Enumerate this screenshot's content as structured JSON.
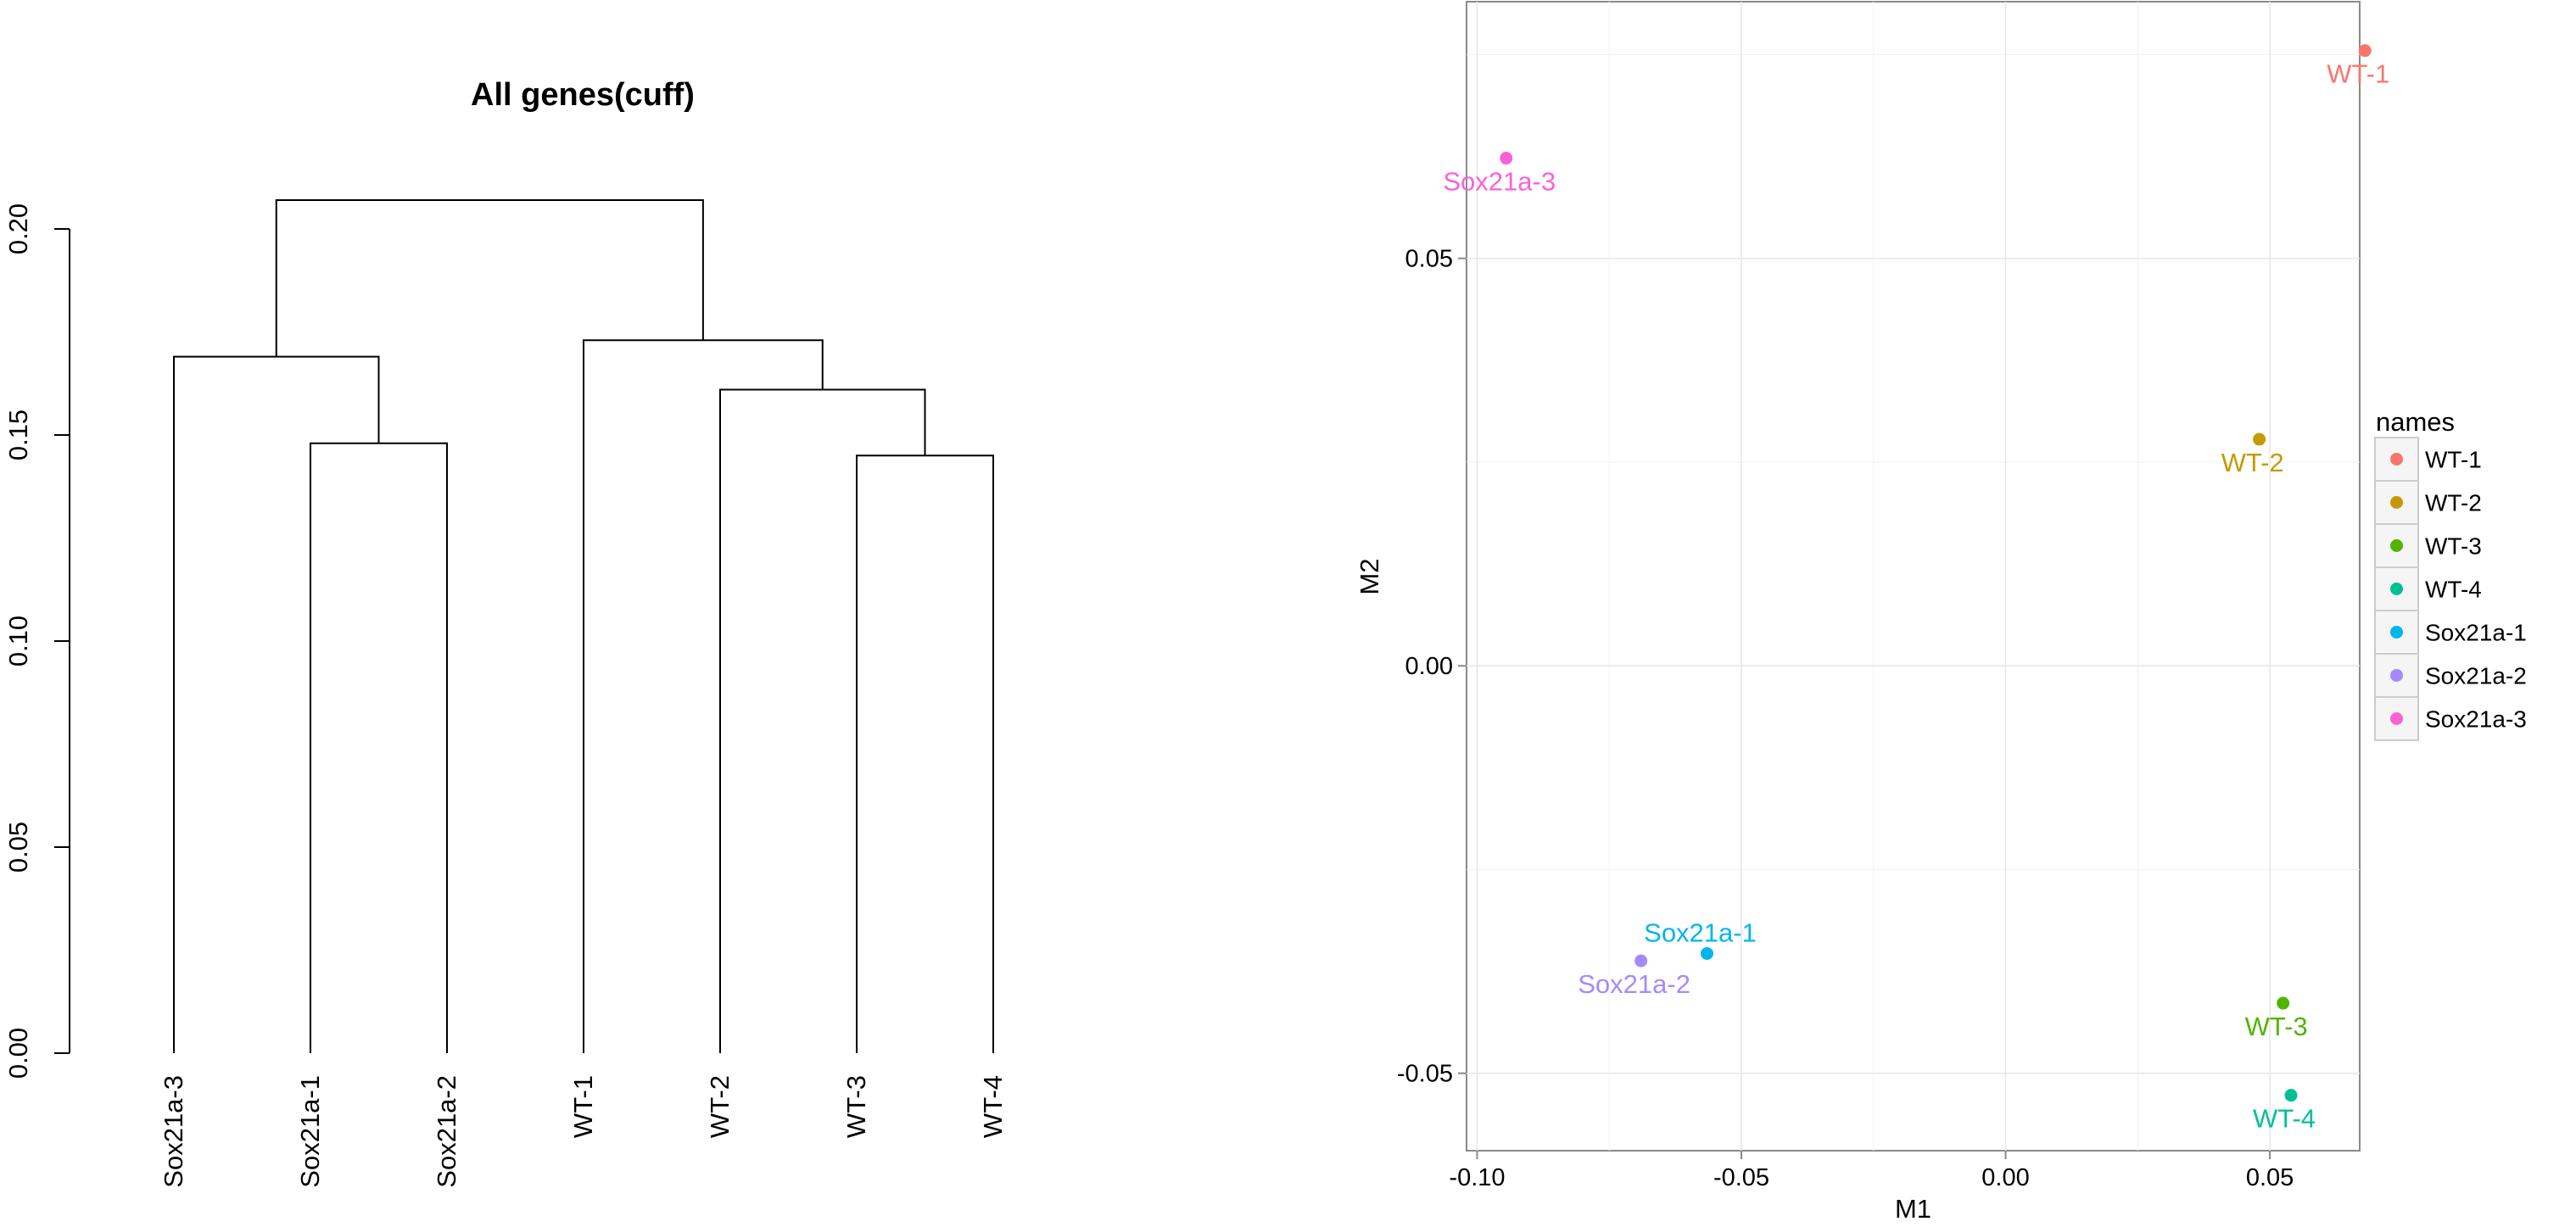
{
  "chart_data": [
    {
      "type": "dendrogram",
      "title": "All genes(cuff)",
      "xlabel": "",
      "ylabel": "",
      "ylim": [
        0,
        0.2
      ],
      "yticks": [
        {
          "value": 0.0,
          "label": "0.00"
        },
        {
          "value": 0.05,
          "label": "0.05"
        },
        {
          "value": 0.1,
          "label": "0.10"
        },
        {
          "value": 0.15,
          "label": "0.15"
        },
        {
          "value": 0.2,
          "label": "0.20"
        }
      ],
      "leaves": [
        "Sox21a-3",
        "Sox21a-1",
        "Sox21a-2",
        "WT-1",
        "WT-2",
        "WT-3",
        "WT-4"
      ],
      "merges": [
        {
          "left": "Sox21a-1",
          "right": "Sox21a-2",
          "height": 0.148
        },
        {
          "left": "WT-3",
          "right": "WT-4",
          "height": 0.145
        },
        {
          "left": "WT-2",
          "right": "WT-3|WT-4",
          "height": 0.161
        },
        {
          "left": "WT-1",
          "right": "WT-2|WT-3|WT-4",
          "height": 0.173
        },
        {
          "left": "Sox21a-3",
          "right": "Sox21a-1|Sox21a-2",
          "height": 0.169
        },
        {
          "left": "Sox21a-3|Sox21a-1|Sox21a-2",
          "right": "WT-1|WT-2|WT-3|WT-4",
          "height": 0.207
        }
      ],
      "grid": false
    },
    {
      "type": "scatter",
      "title": "",
      "xlabel": "M1",
      "ylabel": "M2",
      "xlim": [
        -0.102,
        0.067
      ],
      "ylim": [
        -0.0595,
        0.0815
      ],
      "xticks": [
        {
          "value": -0.1,
          "label": "-0.10"
        },
        {
          "value": -0.05,
          "label": "-0.05"
        },
        {
          "value": 0.0,
          "label": "0.00"
        },
        {
          "value": 0.05,
          "label": "0.05"
        }
      ],
      "yticks": [
        {
          "value": -0.05,
          "label": "-0.05"
        },
        {
          "value": 0.0,
          "label": "0.00"
        },
        {
          "value": 0.05,
          "label": "0.05"
        }
      ],
      "grid": true,
      "legend": {
        "title": "names",
        "placement": "right"
      },
      "points": [
        {
          "name": "WT-1",
          "x": 0.068,
          "y": 0.0755,
          "color": "#F8766D",
          "label_pos": "below"
        },
        {
          "name": "WT-2",
          "x": 0.048,
          "y": 0.0278,
          "color": "#C49A00",
          "label_pos": "below"
        },
        {
          "name": "WT-3",
          "x": 0.0525,
          "y": -0.0414,
          "color": "#53B400",
          "label_pos": "below"
        },
        {
          "name": "WT-4",
          "x": 0.054,
          "y": -0.0527,
          "color": "#00C094",
          "label_pos": "below"
        },
        {
          "name": "Sox21a-1",
          "x": -0.0565,
          "y": -0.0353,
          "color": "#00B6EB",
          "label_pos": "above"
        },
        {
          "name": "Sox21a-2",
          "x": -0.069,
          "y": -0.0362,
          "color": "#A58AFF",
          "label_pos": "below"
        },
        {
          "name": "Sox21a-3",
          "x": -0.0945,
          "y": 0.0623,
          "color": "#FB61D7",
          "label_pos": "below"
        }
      ]
    }
  ]
}
